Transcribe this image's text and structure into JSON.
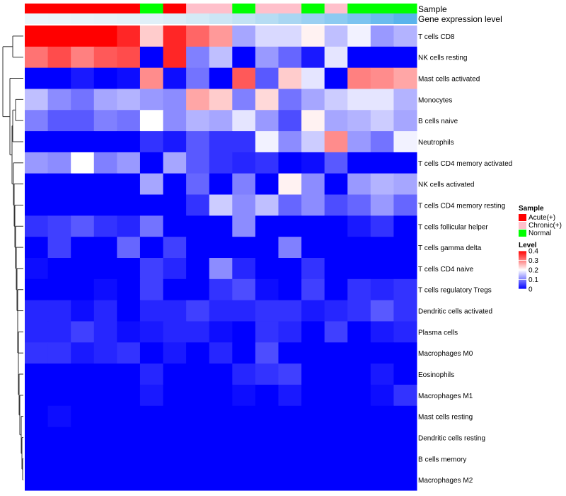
{
  "chart_data": {
    "type": "heatmap",
    "title": "",
    "annotation_rows": {
      "sample_label": "Sample",
      "expression_label": "Gene expression level",
      "sample_groups": [
        "Acute(+)",
        "Acute(+)",
        "Acute(+)",
        "Acute(+)",
        "Acute(+)",
        "Normal",
        "Acute(+)",
        "Chronic(+)",
        "Chronic(+)",
        "Normal",
        "Chronic(+)",
        "Chronic(+)",
        "Normal",
        "Chronic(+)",
        "Normal",
        "Normal",
        "Normal"
      ],
      "expression_colors": [
        "#ecf6fb",
        "#ebf5fa",
        "#e9f4fa",
        "#e7f3f9",
        "#e4f2f9",
        "#e0f0f8",
        "#dcedf7",
        "#d4eaf6",
        "#cce6f5",
        "#c2e2f4",
        "#b6dcf3",
        "#a9d6f2",
        "#9bd0f2",
        "#8ccaf1",
        "#7bc3f0",
        "#6abbee",
        "#59b3ec"
      ]
    },
    "rows": [
      {
        "label": "T cells CD8",
        "values": [
          0.4,
          0.4,
          0.4,
          0.4,
          0.37,
          0.24,
          0.37,
          0.32,
          0.28,
          0.13,
          0.17,
          0.17,
          0.21,
          0.15,
          0.19,
          0.12,
          0.14
        ]
      },
      {
        "label": "NK cells resting",
        "values": [
          0.31,
          0.34,
          0.3,
          0.33,
          0.34,
          0.0,
          0.37,
          0.1,
          0.15,
          0.0,
          0.12,
          0.08,
          0.02,
          0.18,
          0.0,
          0.0,
          0.0
        ]
      },
      {
        "label": "Mast cells activated",
        "values": [
          0.0,
          0.0,
          0.02,
          0.0,
          0.01,
          0.29,
          0.01,
          0.09,
          0.0,
          0.33,
          0.07,
          0.24,
          0.18,
          0.0,
          0.3,
          0.29,
          0.27
        ]
      },
      {
        "label": "Monocytes",
        "values": [
          0.15,
          0.11,
          0.09,
          0.13,
          0.14,
          0.12,
          0.11,
          0.27,
          0.24,
          0.1,
          0.23,
          0.09,
          0.13,
          0.16,
          0.18,
          0.18,
          0.14
        ]
      },
      {
        "label": "B cells naive",
        "values": [
          0.1,
          0.07,
          0.07,
          0.1,
          0.09,
          0.2,
          0.11,
          0.14,
          0.13,
          0.18,
          0.12,
          0.06,
          0.21,
          0.13,
          0.14,
          0.16,
          0.13
        ]
      },
      {
        "label": "Neutrophils",
        "values": [
          0.0,
          0.0,
          0.0,
          0.0,
          0.0,
          0.04,
          0.02,
          0.07,
          0.04,
          0.04,
          0.19,
          0.11,
          0.16,
          0.29,
          0.12,
          0.09,
          0.19
        ]
      },
      {
        "label": "T cells CD4 memory activated",
        "values": [
          0.12,
          0.11,
          0.2,
          0.1,
          0.12,
          0.0,
          0.13,
          0.07,
          0.04,
          0.03,
          0.04,
          0.0,
          0.01,
          0.07,
          0.0,
          0.0,
          0.0
        ]
      },
      {
        "label": "NK cells activated",
        "values": [
          0.0,
          0.0,
          0.0,
          0.0,
          0.0,
          0.13,
          0.0,
          0.08,
          0.0,
          0.1,
          0.0,
          0.21,
          0.11,
          0.0,
          0.12,
          0.14,
          0.13
        ]
      },
      {
        "label": "T cells CD4 memory resting",
        "values": [
          0.0,
          0.0,
          0.0,
          0.0,
          0.0,
          0.0,
          0.0,
          0.04,
          0.16,
          0.11,
          0.15,
          0.08,
          0.11,
          0.06,
          0.08,
          0.12,
          0.08
        ]
      },
      {
        "label": "T cells follicular helper",
        "values": [
          0.04,
          0.05,
          0.07,
          0.04,
          0.03,
          0.09,
          0.0,
          0.0,
          0.0,
          0.11,
          0.0,
          0.0,
          0.0,
          0.0,
          0.02,
          0.04,
          0.0
        ]
      },
      {
        "label": "T cells gamma delta",
        "values": [
          0.0,
          0.05,
          0.0,
          0.0,
          0.08,
          0.0,
          0.05,
          0.0,
          0.0,
          0.0,
          0.0,
          0.1,
          0.0,
          0.0,
          0.0,
          0.0,
          0.0
        ]
      },
      {
        "label": "T cells CD4 naive",
        "values": [
          0.01,
          0.0,
          0.0,
          0.0,
          0.0,
          0.05,
          0.03,
          0.0,
          0.11,
          0.03,
          0.0,
          0.0,
          0.04,
          0.0,
          0.0,
          0.0,
          0.0
        ]
      },
      {
        "label": "T cells regulatory  Tregs",
        "values": [
          0.0,
          0.0,
          0.0,
          0.01,
          0.0,
          0.05,
          0.0,
          0.0,
          0.04,
          0.06,
          0.01,
          0.0,
          0.05,
          0.0,
          0.04,
          0.03,
          0.04
        ]
      },
      {
        "label": "Dendritic cells activated",
        "values": [
          0.03,
          0.03,
          0.01,
          0.03,
          0.0,
          0.03,
          0.03,
          0.05,
          0.03,
          0.03,
          0.04,
          0.04,
          0.02,
          0.03,
          0.04,
          0.07,
          0.04
        ]
      },
      {
        "label": "Plasma cells",
        "values": [
          0.03,
          0.03,
          0.05,
          0.03,
          0.01,
          0.02,
          0.03,
          0.03,
          0.01,
          0.0,
          0.04,
          0.03,
          0.0,
          0.05,
          0.0,
          0.02,
          0.03
        ]
      },
      {
        "label": "Macrophages M0",
        "values": [
          0.04,
          0.04,
          0.02,
          0.03,
          0.04,
          0.0,
          0.02,
          0.0,
          0.03,
          0.0,
          0.06,
          0.0,
          0.0,
          0.0,
          0.0,
          0.0,
          0.0
        ]
      },
      {
        "label": "Eosinophils",
        "values": [
          0.0,
          0.0,
          0.0,
          0.0,
          0.0,
          0.03,
          0.0,
          0.0,
          0.0,
          0.03,
          0.04,
          0.05,
          0.0,
          0.0,
          0.0,
          0.02,
          0.0
        ]
      },
      {
        "label": "Macrophages M1",
        "values": [
          0.0,
          0.0,
          0.0,
          0.0,
          0.0,
          0.02,
          0.0,
          0.0,
          0.0,
          0.01,
          0.0,
          0.02,
          0.0,
          0.0,
          0.0,
          0.01,
          0.04
        ]
      },
      {
        "label": "Mast cells resting",
        "values": [
          0.0,
          0.01,
          0.0,
          0.0,
          0.0,
          0.0,
          0.0,
          0.0,
          0.0,
          0.0,
          0.0,
          0.0,
          0.0,
          0.0,
          0.0,
          0.0,
          0.0
        ]
      },
      {
        "label": "Dendritic cells resting",
        "values": [
          0.0,
          0.0,
          0.0,
          0.0,
          0.0,
          0.0,
          0.0,
          0.0,
          0.0,
          0.0,
          0.0,
          0.0,
          0.0,
          0.0,
          0.0,
          0.0,
          0.0
        ]
      },
      {
        "label": "B cells memory",
        "values": [
          0.0,
          0.0,
          0.0,
          0.0,
          0.0,
          0.0,
          0.0,
          0.0,
          0.0,
          0.0,
          0.0,
          0.0,
          0.0,
          0.0,
          0.0,
          0.0,
          0.0
        ]
      },
      {
        "label": "Macrophages M2",
        "values": [
          0.0,
          0.0,
          0.0,
          0.0,
          0.0,
          0.0,
          0.0,
          0.0,
          0.0,
          0.0,
          0.0,
          0.0,
          0.0,
          0.0,
          0.0,
          0.0,
          0.0
        ]
      }
    ],
    "color_scale": {
      "min": 0,
      "mid": 0.2,
      "max": 0.4,
      "low_color": "#0000ff",
      "mid_color": "#ffffff",
      "high_color": "#ff0000"
    },
    "legend": {
      "sample_title": "Sample",
      "sample_entries": [
        {
          "label": "Acute(+)",
          "color": "#ff0000"
        },
        {
          "label": "Chronic(+)",
          "color": "#ffc0cb"
        },
        {
          "label": "Normal",
          "color": "#00ff00"
        }
      ],
      "level_title": "Level",
      "level_ticks": [
        0.4,
        0.3,
        0.2,
        0.1,
        0
      ],
      "placement": "right"
    },
    "dendrogram": {
      "side": "left",
      "row_order": "as listed"
    }
  }
}
